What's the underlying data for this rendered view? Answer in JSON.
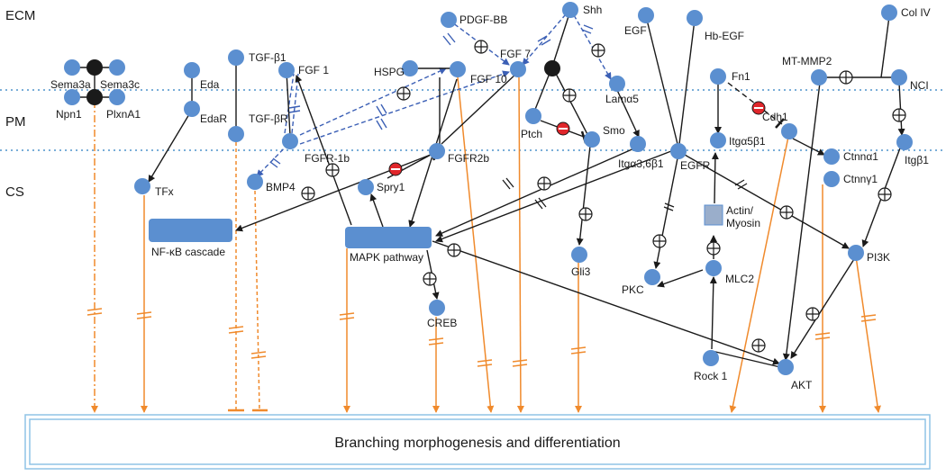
{
  "regions": {
    "ecm": "ECM",
    "pm": "PM",
    "cs": "CS"
  },
  "nodes": {
    "sema3a": "Sema3a",
    "sema3c": "Sema3c",
    "npn1": "Npn1",
    "plxna1": "PlxnA1",
    "eda": "Eda",
    "edar": "EdaR",
    "tgfb1": "TGF-β1",
    "tgfbr": "TGF-βR",
    "fgf1": "FGF 1",
    "fgfr1b": "FGFR-1b",
    "hspg": "HSPG",
    "pdgfbb": "PDGF-BB",
    "fgf10": "FGF 10",
    "fgf7": "FGF 7",
    "shh": "Shh",
    "lama5": "Lamα5",
    "ptch": "Ptch",
    "smo": "Smo",
    "gli3": "Gli3",
    "egf": "EGF",
    "hbegf": "Hb-EGF",
    "itga36b1": "Itgα3,6β1",
    "egfr": "EGFR",
    "fn1": "Fn1",
    "itga5b1": "Itgα5β1",
    "mtmmp2": "MT-MMP2",
    "colIV": "Col IV",
    "nci": "NCI",
    "cdh1": "Cdh1",
    "ctnna1": "Ctnnα1",
    "ctnng1": "Ctnnγ1",
    "itgb1": "Itgβ1",
    "tfx": "TFx",
    "bmp4": "BMP4",
    "spry1": "Spry1",
    "fgfr2b": "FGFR2b",
    "creb": "CREB",
    "actin1": "Actin/",
    "actin2": "Myosin",
    "mlc2": "MLC2",
    "pkc": "PKC",
    "rock1": "Rock 1",
    "akt": "AKT",
    "pi3k": "PI3K"
  },
  "pathways": {
    "nfkb": "NF-κB cascade",
    "mapk": "MAPK pathway"
  },
  "outcome": "Branching morphogenesis and differentiation",
  "colors": {
    "node": "#5b8fd0",
    "complex": "#1a1a1a",
    "inhibitor": "#e0262b",
    "output": "#f08a2c",
    "membrane": "#7aaed8",
    "dashed": "#3b5fb5"
  }
}
